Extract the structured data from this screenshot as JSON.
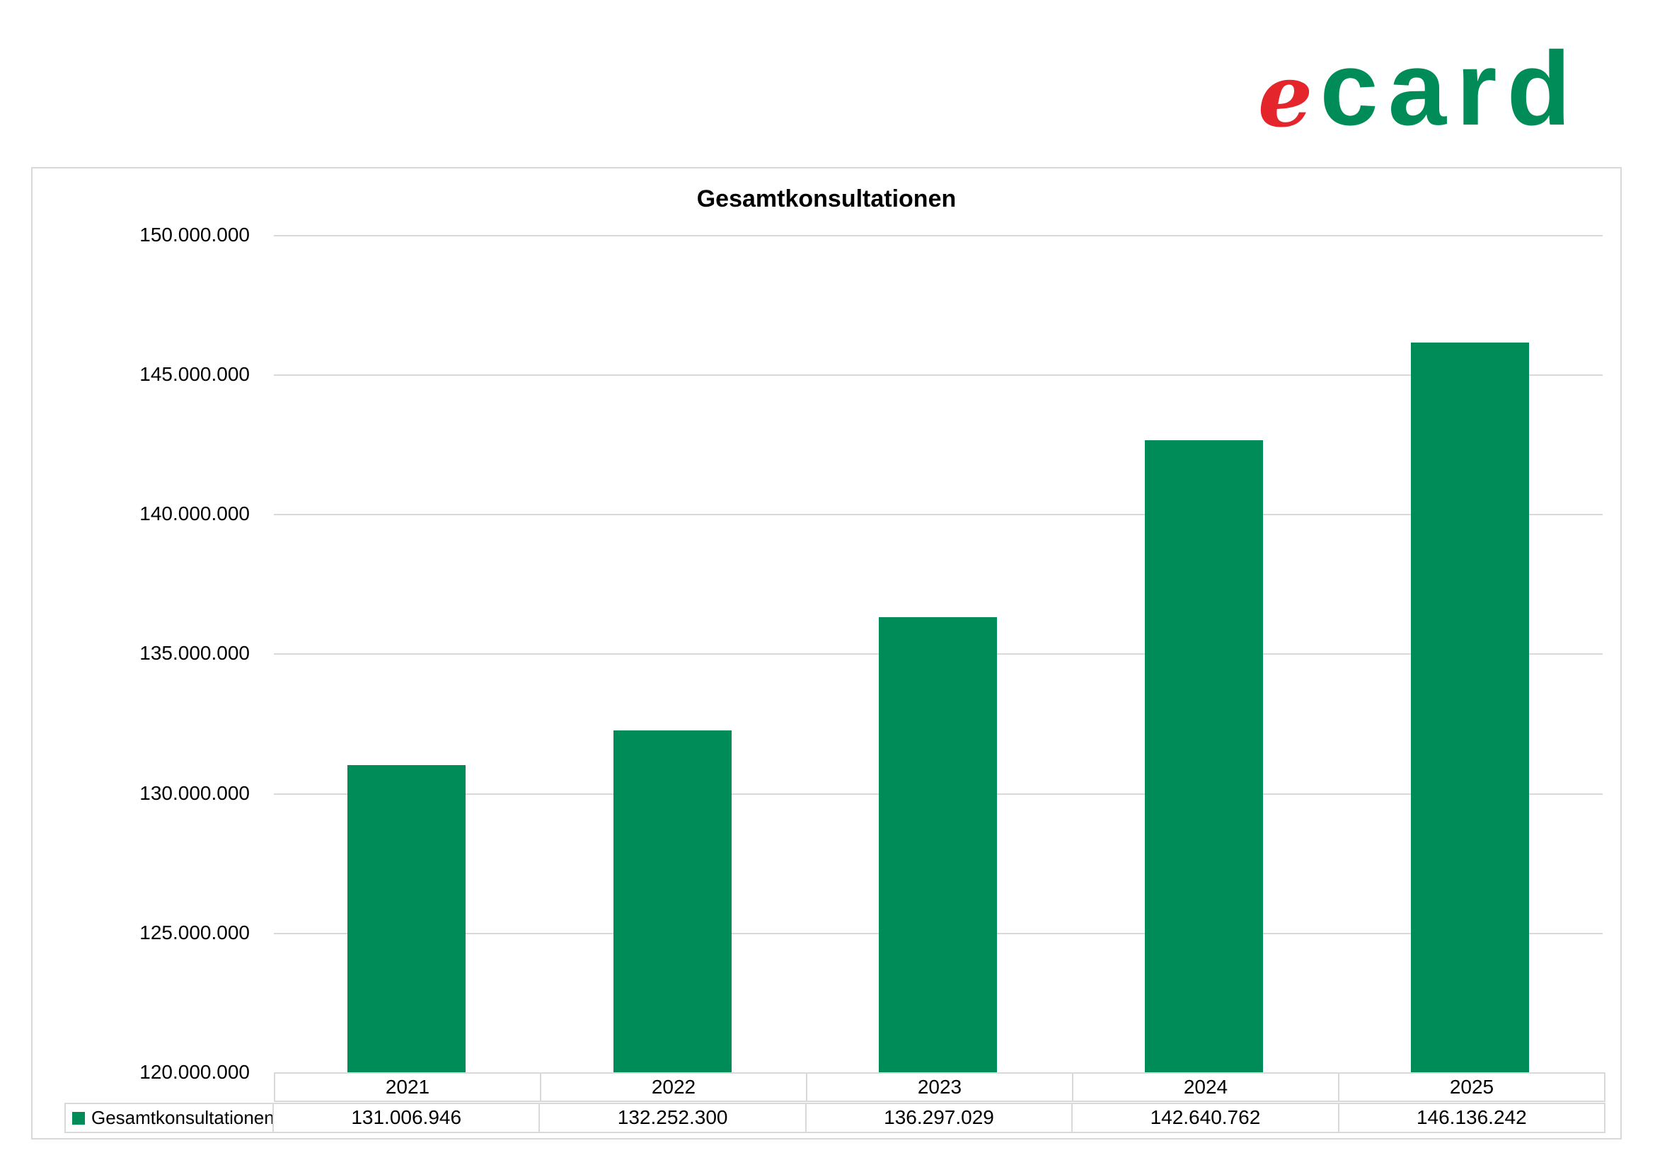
{
  "logo": {
    "e_text": "e",
    "card_text": "card"
  },
  "colors": {
    "bar_green": "#008c59",
    "logo_red": "#e4262c",
    "logo_green": "#008c59",
    "grid_gray": "#d9d9d9"
  },
  "chart_data": {
    "type": "bar",
    "title": "Gesamtkonsultationen",
    "categories": [
      "2021",
      "2022",
      "2023",
      "2024",
      "2025"
    ],
    "series": [
      {
        "name": "Gesamtkonsultationen",
        "values": [
          131006946,
          132252300,
          136297029,
          142640762,
          146136242
        ],
        "values_formatted": [
          "131.006.946",
          "132.252.300",
          "136.297.029",
          "142.640.762",
          "146.136.242"
        ]
      }
    ],
    "xlabel": "",
    "ylabel": "",
    "ylim": [
      120000000,
      150000000
    ],
    "y_tick_step": 5000000,
    "y_ticks": [
      "150.000.000",
      "145.000.000",
      "140.000.000",
      "135.000.000",
      "130.000.000",
      "125.000.000",
      "120.000.000"
    ],
    "grid": true,
    "legend_position": "data-table-left"
  }
}
